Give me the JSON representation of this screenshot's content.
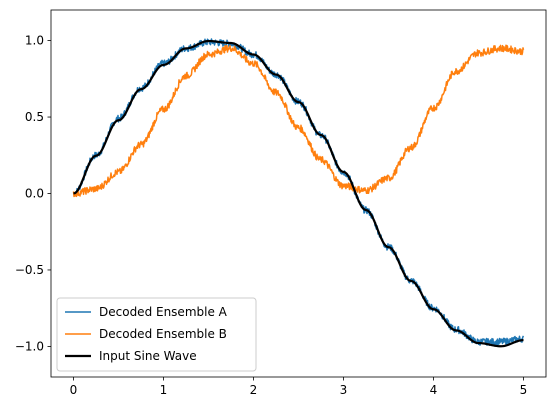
{
  "chart_data": {
    "type": "line",
    "title": "",
    "xlabel": "",
    "ylabel": "",
    "xlim": [
      -0.25,
      5.25
    ],
    "ylim": [
      -1.2,
      1.2
    ],
    "xticks": [
      0,
      1,
      2,
      3,
      4,
      5
    ],
    "xtick_labels": [
      "0",
      "1",
      "2",
      "3",
      "4",
      "5"
    ],
    "yticks": [
      -1.0,
      -0.5,
      0.0,
      0.5,
      1.0
    ],
    "ytick_labels": [
      "−1.0",
      "−0.5",
      "0.0",
      "0.5",
      "1.0"
    ],
    "grid": false,
    "legend_position": "lower-left",
    "series": [
      {
        "name": "Decoded Ensemble A",
        "color": "#1f77b4",
        "noisy": true,
        "x": [
          0,
          0.25,
          0.5,
          0.75,
          1.0,
          1.25,
          1.5,
          1.75,
          2.0,
          2.25,
          2.5,
          2.75,
          3.0,
          3.25,
          3.5,
          3.75,
          4.0,
          4.25,
          4.5,
          4.75,
          5.0
        ],
        "values": [
          0.0,
          0.25,
          0.49,
          0.69,
          0.85,
          0.95,
          0.99,
          0.98,
          0.91,
          0.78,
          0.6,
          0.38,
          0.14,
          -0.11,
          -0.35,
          -0.57,
          -0.75,
          -0.89,
          -0.97,
          -0.97,
          -0.95
        ]
      },
      {
        "name": "Decoded Ensemble B",
        "color": "#ff7f0e",
        "noisy": true,
        "x": [
          0,
          0.25,
          0.5,
          0.75,
          1.0,
          1.25,
          1.5,
          1.75,
          2.0,
          2.25,
          2.5,
          2.75,
          3.0,
          3.25,
          3.5,
          3.75,
          4.0,
          4.25,
          4.5,
          4.75,
          5.0
        ],
        "values": [
          0.0,
          0.03,
          0.14,
          0.32,
          0.55,
          0.77,
          0.91,
          0.95,
          0.85,
          0.66,
          0.43,
          0.22,
          0.05,
          0.02,
          0.1,
          0.3,
          0.56,
          0.8,
          0.92,
          0.95,
          0.93
        ]
      },
      {
        "name": "Input Sine Wave",
        "color": "#000000",
        "noisy": false,
        "x": [
          0,
          0.25,
          0.5,
          0.75,
          1.0,
          1.25,
          1.5,
          1.75,
          2.0,
          2.25,
          2.5,
          2.75,
          3.0,
          3.25,
          3.5,
          3.75,
          4.0,
          4.25,
          4.5,
          4.75,
          5.0
        ],
        "values": [
          0.0,
          0.247,
          0.479,
          0.682,
          0.841,
          0.949,
          0.997,
          0.984,
          0.909,
          0.778,
          0.598,
          0.382,
          0.141,
          -0.108,
          -0.351,
          -0.572,
          -0.757,
          -0.895,
          -0.978,
          -0.999,
          -0.959
        ]
      }
    ]
  }
}
